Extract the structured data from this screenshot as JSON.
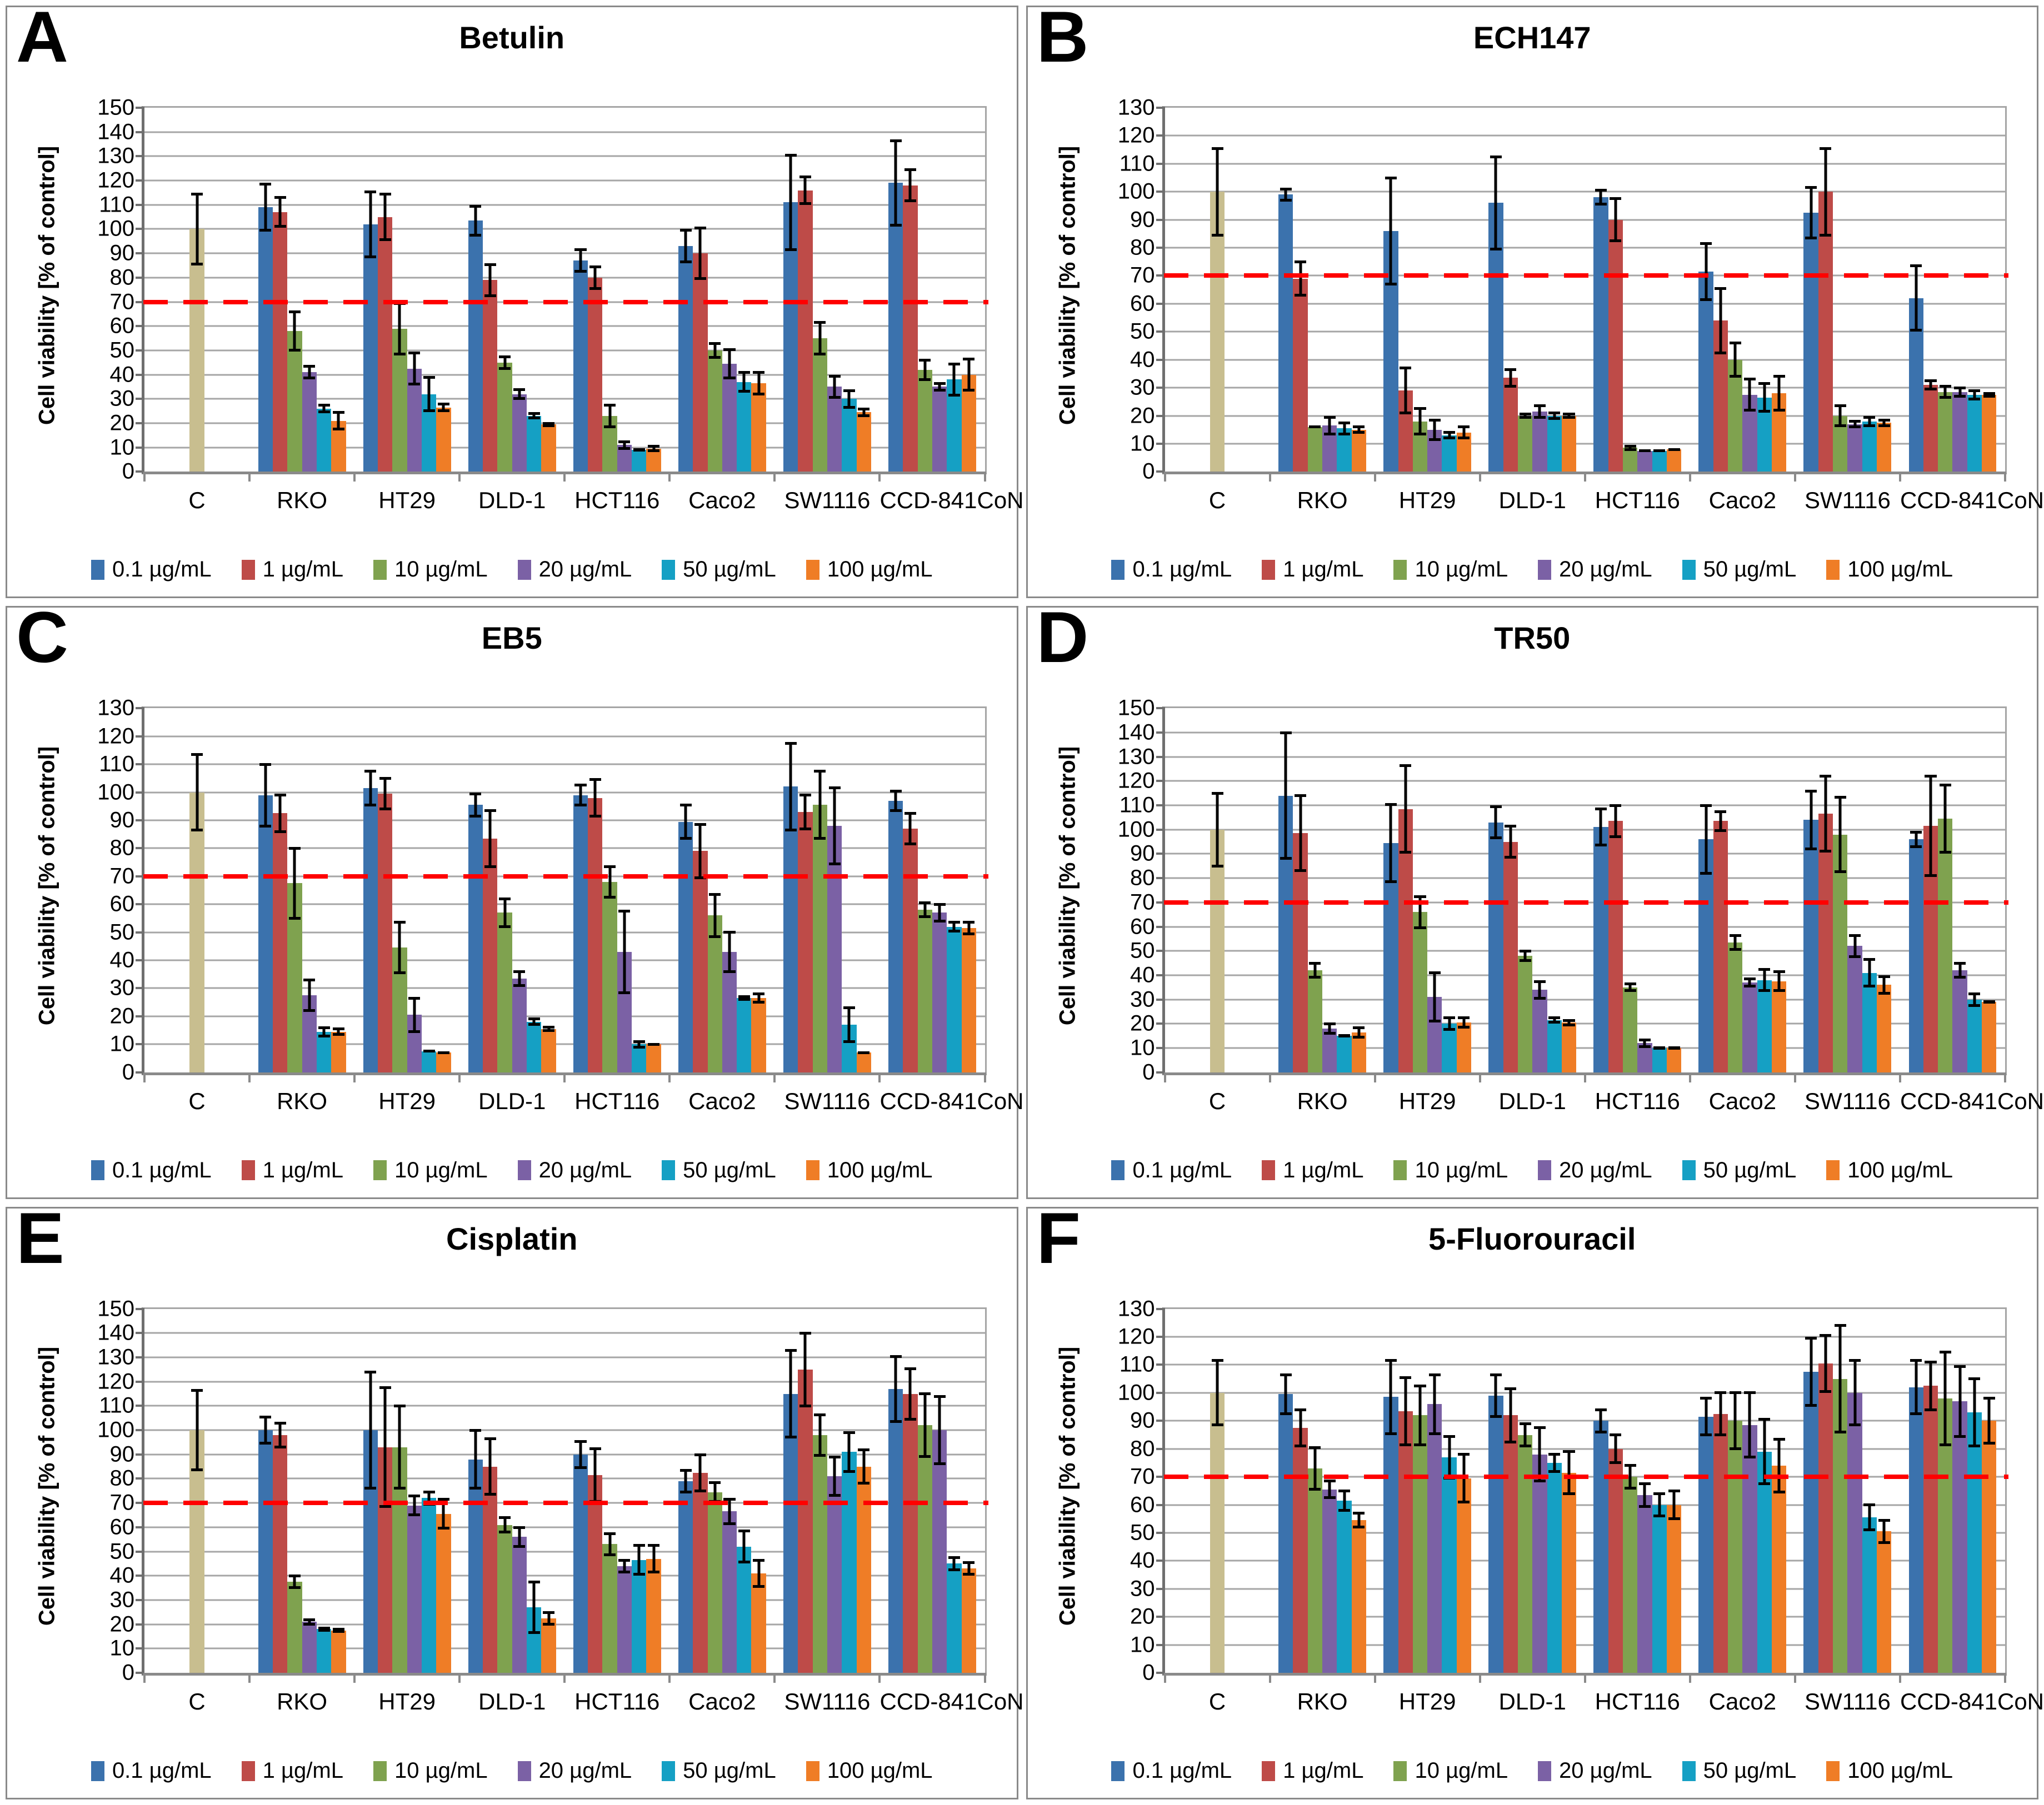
{
  "figure": {
    "y_axis_label": "Cell viability [% of control]",
    "control_color": "#c8be8f",
    "threshold_color": "#ff0000",
    "grid_color": "#a6a6a6",
    "legend_labels": [
      "0.1 µg/mL",
      "1 µg/mL",
      "10 µg/mL",
      "20 µg/mL",
      "50 µg/mL",
      "100 µg/mL"
    ],
    "series_colors": [
      "#3b72ad",
      "#be4b48",
      "#7fa24f",
      "#7b61a5",
      "#15a0c4",
      "#ef7d26"
    ]
  },
  "chart_data": [
    {
      "panel_letter": "A",
      "type": "bar",
      "title": "Betulin",
      "ylim": [
        0,
        150
      ],
      "ytick_step": 10,
      "threshold": 70,
      "categories": [
        "C",
        "RKO",
        "HT29",
        "DLD-1",
        "HCT116",
        "Caco2",
        "SW1116",
        "CCD-841CoN"
      ],
      "control": {
        "value": 100,
        "err": 15
      },
      "series": [
        {
          "name": "0.1 µg/mL",
          "color": "#3b72ad",
          "values": [
            109,
            102,
            103.5,
            87,
            93,
            111,
            119
          ],
          "errors": [
            10,
            14,
            6.5,
            5,
            7,
            20,
            18
          ]
        },
        {
          "name": "1 µg/mL",
          "color": "#be4b48",
          "values": [
            107,
            105,
            79,
            80,
            90,
            116,
            118
          ],
          "errors": [
            6.5,
            10,
            7,
            5,
            11,
            6,
            7
          ]
        },
        {
          "name": "10 µg/mL",
          "color": "#7fa24f",
          "values": [
            58,
            59,
            45,
            23,
            50,
            55,
            42
          ],
          "errors": [
            8.5,
            11,
            3,
            5,
            3.5,
            7,
            4.5
          ]
        },
        {
          "name": "20 µg/mL",
          "color": "#7b61a5",
          "values": [
            41,
            42.5,
            32,
            11,
            44.5,
            35,
            35
          ],
          "errors": [
            3,
            7,
            2.5,
            2,
            6.5,
            5,
            2
          ]
        },
        {
          "name": "50 µg/mL",
          "color": "#15a0c4",
          "values": [
            26,
            32,
            23,
            9,
            37,
            30,
            38
          ],
          "errors": [
            2,
            7.5,
            1.5,
            0.5,
            4.5,
            4,
            7
          ]
        },
        {
          "name": "100 µg/mL",
          "color": "#ef7d26",
          "values": [
            21,
            26.5,
            19.5,
            9.5,
            36.5,
            24.5,
            40
          ],
          "errors": [
            4,
            2,
            1,
            1.5,
            5,
            2,
            7
          ]
        }
      ]
    },
    {
      "panel_letter": "B",
      "type": "bar",
      "title": "ECH147",
      "ylim": [
        0,
        130
      ],
      "ytick_step": 10,
      "threshold": 70,
      "categories": [
        "C",
        "RKO",
        "HT29",
        "DLD-1",
        "HCT116",
        "Caco2",
        "SW1116",
        "CCD-841CoN"
      ],
      "control": {
        "value": 100,
        "err": 16
      },
      "series": [
        {
          "name": "0.1 µg/mL",
          "color": "#3b72ad",
          "values": [
            99,
            86,
            96,
            98,
            71.5,
            92.5,
            62
          ],
          "errors": [
            2.5,
            19.5,
            17,
            3,
            10.5,
            9.5,
            12
          ]
        },
        {
          "name": "1 µg/mL",
          "color": "#be4b48",
          "values": [
            69,
            29,
            33.5,
            90,
            54,
            100,
            31
          ],
          "errors": [
            6.5,
            8.5,
            3.5,
            8,
            12,
            16,
            2
          ]
        },
        {
          "name": "10 µg/mL",
          "color": "#7fa24f",
          "values": [
            16,
            18,
            20,
            8.5,
            40,
            20,
            28.5
          ],
          "errors": [
            0.5,
            5,
            1,
            1,
            6.5,
            4,
            2.5
          ]
        },
        {
          "name": "20 µg/mL",
          "color": "#7b61a5",
          "values": [
            16.5,
            15,
            21.5,
            7.5,
            27.5,
            17,
            28.5
          ],
          "errors": [
            3.5,
            4,
            2.5,
            0.5,
            6,
            1.5,
            2
          ]
        },
        {
          "name": "50 µg/mL",
          "color": "#15a0c4",
          "values": [
            15.5,
            13,
            20,
            7.5,
            26.5,
            18,
            27.5
          ],
          "errors": [
            2.5,
            1.5,
            1.5,
            0.5,
            5.5,
            2,
            2
          ]
        },
        {
          "name": "100 µg/mL",
          "color": "#ef7d26",
          "values": [
            15,
            14,
            20,
            8,
            28,
            17.5,
            27.5
          ],
          "errors": [
            1.5,
            2.5,
            1,
            0.5,
            6.5,
            1.5,
            1
          ]
        }
      ]
    },
    {
      "panel_letter": "C",
      "type": "bar",
      "title": "EB5",
      "ylim": [
        0,
        130
      ],
      "ytick_step": 10,
      "threshold": 70,
      "categories": [
        "C",
        "RKO",
        "HT29",
        "DLD-1",
        "HCT116",
        "Caco2",
        "SW1116",
        "CCD-841CoN"
      ],
      "control": {
        "value": 100,
        "err": 14
      },
      "series": [
        {
          "name": "0.1 µg/mL",
          "color": "#3b72ad",
          "values": [
            99,
            101.5,
            95.5,
            99,
            89.5,
            102,
            97
          ],
          "errors": [
            11.5,
            6.5,
            4.5,
            4,
            6.5,
            16,
            4
          ]
        },
        {
          "name": "1 µg/mL",
          "color": "#be4b48",
          "values": [
            92.5,
            99.5,
            83.5,
            98,
            79,
            93,
            87
          ],
          "errors": [
            7,
            6,
            10.5,
            7,
            10,
            6.5,
            6
          ]
        },
        {
          "name": "10 µg/mL",
          "color": "#7fa24f",
          "values": [
            67.5,
            44.5,
            57,
            68,
            56,
            95.5,
            58
          ],
          "errors": [
            13,
            9.5,
            5.5,
            6,
            8,
            12.5,
            3
          ]
        },
        {
          "name": "20 µg/mL",
          "color": "#7b61a5",
          "values": [
            27.5,
            20.5,
            33.5,
            43,
            43,
            88,
            57
          ],
          "errors": [
            6,
            6.5,
            3,
            15,
            7.5,
            14,
            3.5
          ]
        },
        {
          "name": "50 µg/mL",
          "color": "#15a0c4",
          "values": [
            14.5,
            7.5,
            18,
            10,
            26.5,
            17,
            52
          ],
          "errors": [
            2,
            0.5,
            1.5,
            1.5,
            1,
            6.5,
            2
          ]
        },
        {
          "name": "100 µg/mL",
          "color": "#ef7d26",
          "values": [
            14.5,
            7,
            15.5,
            10,
            26.5,
            7,
            51.5
          ],
          "errors": [
            1.5,
            0.5,
            1,
            0.5,
            2,
            0.5,
            2.5
          ]
        }
      ]
    },
    {
      "panel_letter": "D",
      "type": "bar",
      "title": "TR50",
      "ylim": [
        0,
        150
      ],
      "ytick_step": 10,
      "threshold": 70,
      "categories": [
        "C",
        "RKO",
        "HT29",
        "DLD-1",
        "HCT116",
        "Caco2",
        "SW1116",
        "CCD-841CoN"
      ],
      "control": {
        "value": 100,
        "err": 15.5
      },
      "series": [
        {
          "name": "0.1 µg/mL",
          "color": "#3b72ad",
          "values": [
            114,
            94.5,
            103,
            101,
            96,
            104,
            96
          ],
          "errors": [
            26.5,
            16.5,
            7,
            8,
            14.5,
            12.5,
            3.5
          ]
        },
        {
          "name": "1 µg/mL",
          "color": "#be4b48",
          "values": [
            98.5,
            108.5,
            95,
            103.5,
            103.5,
            106.5,
            101.5
          ],
          "errors": [
            16,
            18.5,
            7,
            7,
            4.5,
            16,
            21
          ]
        },
        {
          "name": "10 µg/mL",
          "color": "#7fa24f",
          "values": [
            42,
            66,
            48,
            35,
            53.5,
            98,
            104.5
          ],
          "errors": [
            3.5,
            7,
            2.5,
            2,
            3.5,
            16,
            14.5
          ]
        },
        {
          "name": "20 µg/mL",
          "color": "#7b61a5",
          "values": [
            18,
            31,
            34,
            12,
            37,
            52,
            42
          ],
          "errors": [
            2.5,
            10.5,
            4,
            2,
            2,
            5,
            3.5
          ]
        },
        {
          "name": "50 µg/mL",
          "color": "#15a0c4",
          "values": [
            15,
            20,
            21.5,
            10,
            38,
            41,
            30
          ],
          "errors": [
            0.5,
            3,
            1.5,
            0.5,
            5,
            6,
            3
          ]
        },
        {
          "name": "100 µg/mL",
          "color": "#ef7d26",
          "values": [
            16.5,
            20.5,
            20.5,
            10,
            37.5,
            36,
            29
          ],
          "errors": [
            2.5,
            2.5,
            1.5,
            0.5,
            4.5,
            4,
            0.5
          ]
        }
      ]
    },
    {
      "panel_letter": "E",
      "type": "bar",
      "title": "Cisplatin",
      "ylim": [
        0,
        150
      ],
      "ytick_step": 10,
      "threshold": 70,
      "categories": [
        "C",
        "RKO",
        "HT29",
        "DLD-1",
        "HCT116",
        "Caco2",
        "SW1116",
        "CCD-841CoN"
      ],
      "control": {
        "value": 100,
        "err": 17
      },
      "series": [
        {
          "name": "0.1 µg/mL",
          "color": "#3b72ad",
          "values": [
            100,
            100,
            88,
            90,
            79,
            115,
            117
          ],
          "errors": [
            6,
            24.5,
            12.5,
            6,
            5,
            18.5,
            14
          ]
        },
        {
          "name": "1 µg/mL",
          "color": "#be4b48",
          "values": [
            98,
            93,
            85,
            81.5,
            82.5,
            125,
            115
          ],
          "errors": [
            5.5,
            25,
            12,
            11.5,
            8,
            15.5,
            11
          ]
        },
        {
          "name": "10 µg/mL",
          "color": "#7fa24f",
          "values": [
            37.5,
            93,
            61,
            53,
            74.5,
            98,
            102
          ],
          "errors": [
            3,
            17.5,
            3.5,
            5,
            4.5,
            9,
            13.5
          ]
        },
        {
          "name": "20 µg/mL",
          "color": "#7b61a5",
          "values": [
            21,
            69,
            56,
            44,
            66.5,
            81,
            100
          ],
          "errors": [
            1.5,
            4.5,
            4.5,
            3,
            5.5,
            8.5,
            14.5
          ]
        },
        {
          "name": "50 µg/mL",
          "color": "#15a0c4",
          "values": [
            18,
            72,
            27,
            46.5,
            52,
            91,
            45
          ],
          "errors": [
            1,
            3,
            11,
            6.5,
            7,
            8.5,
            3
          ]
        },
        {
          "name": "100 µg/mL",
          "color": "#ef7d26",
          "values": [
            17.5,
            65.5,
            22.5,
            47,
            41,
            85,
            43
          ],
          "errors": [
            1,
            6.5,
            3,
            6,
            6,
            7.5,
            3
          ]
        }
      ]
    },
    {
      "panel_letter": "F",
      "type": "bar",
      "title": "5-Fluorouracil",
      "ylim": [
        0,
        130
      ],
      "ytick_step": 10,
      "threshold": 70,
      "categories": [
        "C",
        "RKO",
        "HT29",
        "DLD-1",
        "HCT116",
        "Caco2",
        "SW1116",
        "CCD-841CoN"
      ],
      "control": {
        "value": 100,
        "err": 12
      },
      "series": [
        {
          "name": "0.1 µg/mL",
          "color": "#3b72ad",
          "values": [
            99.5,
            98.5,
            99,
            90,
            91.5,
            107.5,
            102
          ],
          "errors": [
            7.5,
            13.5,
            8,
            4.5,
            7,
            12.5,
            10
          ]
        },
        {
          "name": "1 µg/mL",
          "color": "#be4b48",
          "values": [
            87.5,
            93.5,
            92,
            80,
            92.5,
            110.5,
            102.5
          ],
          "errors": [
            7,
            12.5,
            10,
            5.5,
            8,
            10.5,
            9
          ]
        },
        {
          "name": "10 µg/mL",
          "color": "#7fa24f",
          "values": [
            73,
            92,
            85,
            70,
            90,
            105,
            98
          ],
          "errors": [
            8,
            11,
            4.5,
            4.5,
            10.5,
            19.5,
            17
          ]
        },
        {
          "name": "20 µg/mL",
          "color": "#7b61a5",
          "values": [
            65.5,
            96,
            78,
            63.5,
            88.5,
            100,
            97
          ],
          "errors": [
            3.5,
            11,
            10,
            4.5,
            12,
            12,
            13
          ]
        },
        {
          "name": "50 µg/mL",
          "color": "#15a0c4",
          "values": [
            61.5,
            77,
            75,
            60,
            79,
            55.5,
            93
          ],
          "errors": [
            4,
            8,
            3.5,
            4.5,
            12,
            5,
            12.5
          ]
        },
        {
          "name": "100 µg/mL",
          "color": "#ef7d26",
          "values": [
            54.5,
            69.5,
            71.5,
            60,
            74,
            50.5,
            90
          ],
          "errors": [
            3,
            9,
            8,
            5.5,
            10,
            4.5,
            8.5
          ]
        }
      ]
    }
  ]
}
